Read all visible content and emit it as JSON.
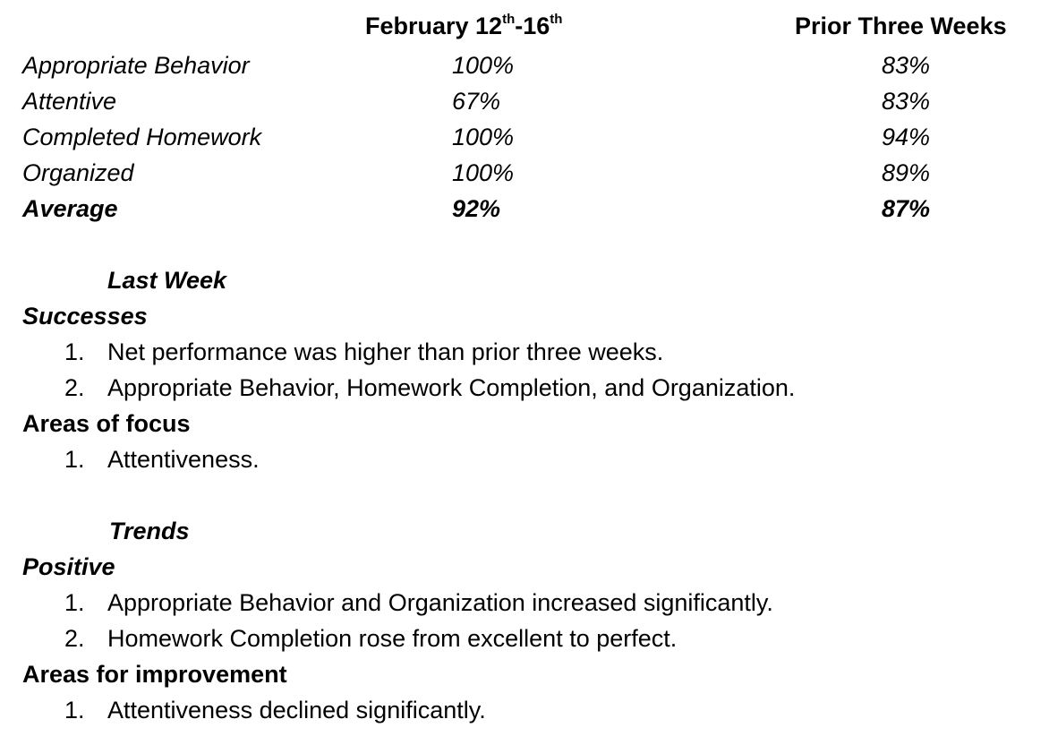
{
  "table": {
    "header": {
      "col1_prefix": "February 12",
      "col1_sup1": "th",
      "col1_mid": "-16",
      "col1_sup2": "th",
      "col2": "Prior Three Weeks"
    },
    "rows": [
      {
        "label": "Appropriate Behavior",
        "current": "100%",
        "prior": "83%"
      },
      {
        "label": "Attentive",
        "current": "67%",
        "prior": "83%"
      },
      {
        "label": "Completed Homework",
        "current": "100%",
        "prior": "94%"
      },
      {
        "label": "Organized",
        "current": "100%",
        "prior": "89%"
      },
      {
        "label": "Average",
        "current": "92%",
        "prior": "87%"
      }
    ]
  },
  "last_week": {
    "heading": "Last Week",
    "successes_title": "Successes",
    "successes": [
      {
        "num": "1.",
        "text": "Net performance was higher than prior three weeks."
      },
      {
        "num": "2.",
        "text": "Appropriate Behavior, Homework Completion, and Organization."
      }
    ],
    "focus_title": "Areas of focus",
    "focus": [
      {
        "num": "1.",
        "text": "Attentiveness."
      }
    ]
  },
  "trends": {
    "heading": "Trends",
    "positive_title": "Positive",
    "positive": [
      {
        "num": "1.",
        "text": "Appropriate Behavior and Organization increased significantly."
      },
      {
        "num": "2.",
        "text": "Homework Completion rose from excellent to perfect."
      }
    ],
    "improvement_title": "Areas for improvement",
    "improvement": [
      {
        "num": "1.",
        "text": "Attentiveness declined significantly."
      }
    ]
  }
}
